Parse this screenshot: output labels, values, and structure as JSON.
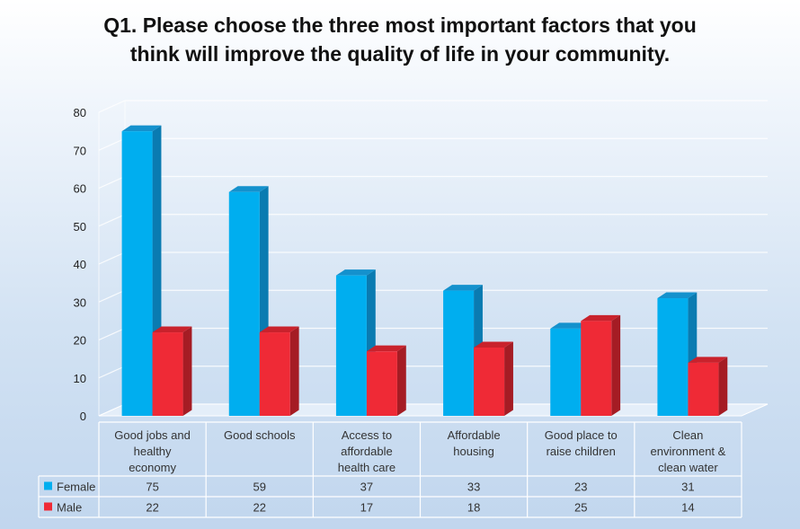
{
  "title_lines": [
    "Q1. Please choose the three most important factors that you",
    "think will improve the quality of life in your community."
  ],
  "colors": {
    "female": "#00aeef",
    "female_side": "#0a7bb1",
    "female_top": "#1491cd",
    "male": "#ef2a36",
    "male_side": "#a51c24",
    "male_top": "#c9222c"
  },
  "chart_data": {
    "type": "bar",
    "title": "Q1. Please choose the three most important factors that you think will improve the quality of life in your community.",
    "categories": [
      [
        "Good jobs and",
        "healthy",
        "economy"
      ],
      [
        "Good schools"
      ],
      [
        "Access to",
        "affordable",
        "health care"
      ],
      [
        "Affordable",
        "housing"
      ],
      [
        "Good place to",
        "raise children"
      ],
      [
        "Clean",
        "environment &",
        "clean water"
      ]
    ],
    "series": [
      {
        "name": "Female",
        "values": [
          75,
          59,
          37,
          33,
          23,
          31
        ]
      },
      {
        "name": "Male",
        "values": [
          22,
          22,
          17,
          18,
          25,
          14
        ]
      }
    ],
    "ylim": [
      0,
      80
    ],
    "yticks": [
      0,
      10,
      20,
      30,
      40,
      50,
      60,
      70,
      80
    ],
    "xlabel": "",
    "ylabel": "",
    "grid": true,
    "legend": "data-table"
  }
}
